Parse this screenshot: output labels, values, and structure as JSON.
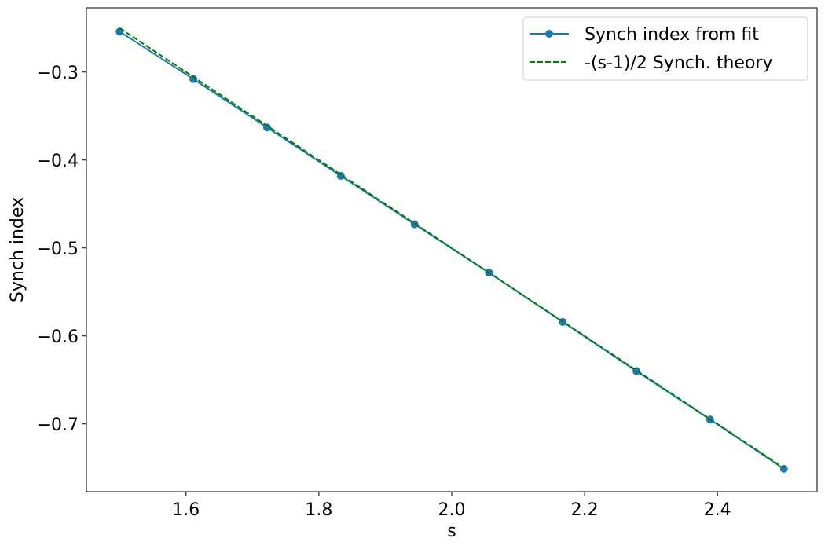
{
  "chart_data": {
    "type": "line",
    "title": "",
    "xlabel": "s",
    "ylabel": "Synch index",
    "xlim": [
      1.45,
      2.55
    ],
    "ylim": [
      -0.777,
      -0.227
    ],
    "x_ticks": [
      1.6,
      1.8,
      2.0,
      2.2,
      2.4
    ],
    "x_tick_labels": [
      "1.6",
      "1.8",
      "2.0",
      "2.2",
      "2.4"
    ],
    "y_ticks": [
      -0.3,
      -0.4,
      -0.5,
      -0.6,
      -0.7
    ],
    "y_tick_labels": [
      "−0.3",
      "−0.4",
      "−0.5",
      "−0.6",
      "−0.7"
    ],
    "grid": false,
    "legend_position": "top-right",
    "series": [
      {
        "name": "Synch index from fit",
        "style": "solid-with-markers",
        "color": "#1f77b4",
        "x": [
          1.5,
          1.611,
          1.722,
          1.833,
          1.944,
          2.056,
          2.167,
          2.278,
          2.389,
          2.5
        ],
        "y": [
          -0.254,
          -0.308,
          -0.363,
          -0.418,
          -0.473,
          -0.528,
          -0.584,
          -0.64,
          -0.695,
          -0.751
        ]
      },
      {
        "name": "-(s-1)/2 Synch. theory",
        "style": "dashed",
        "color": "#008000",
        "x": [
          1.5,
          2.5
        ],
        "y": [
          -0.25,
          -0.75
        ]
      }
    ]
  }
}
